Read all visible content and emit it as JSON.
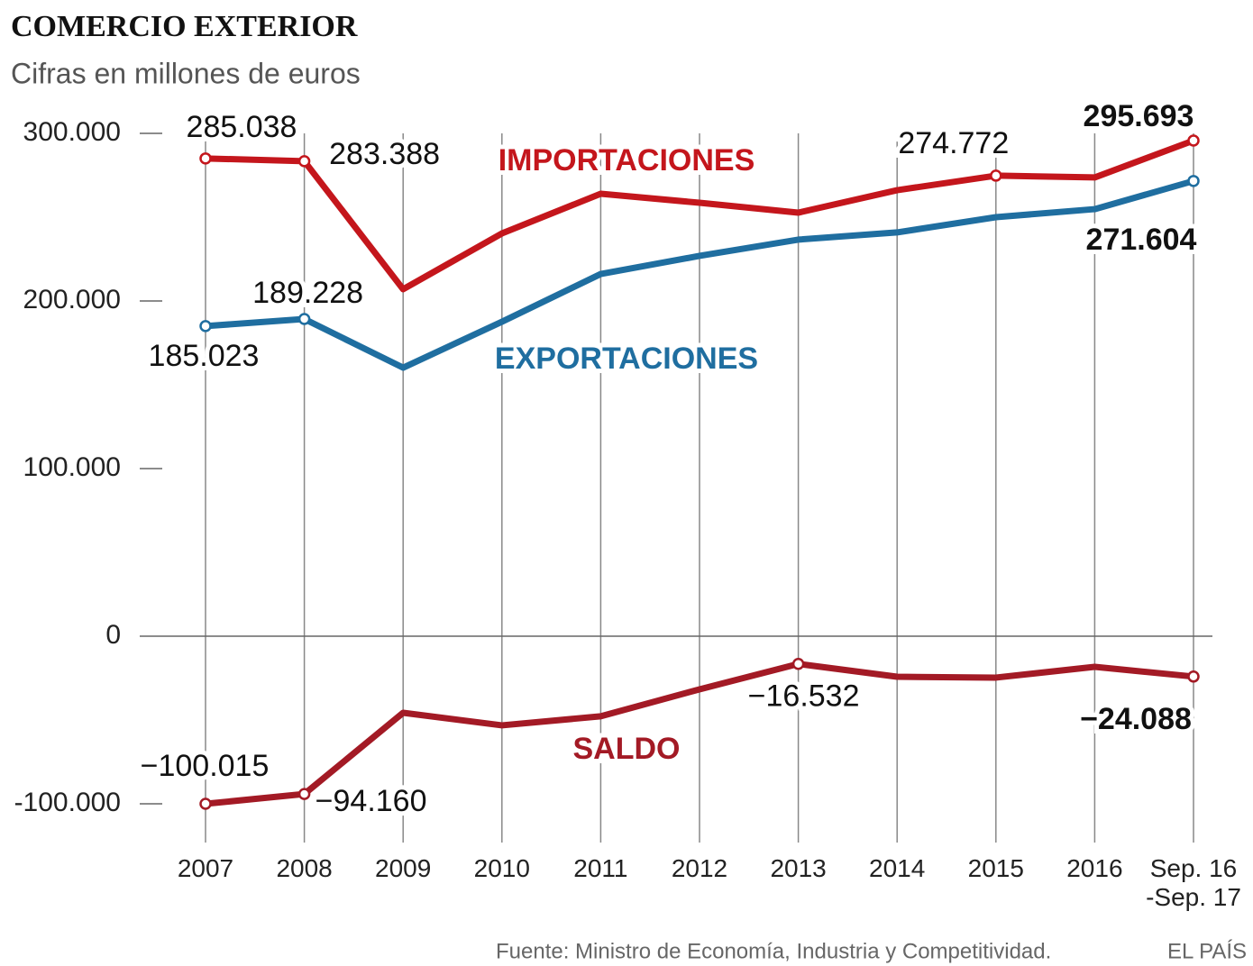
{
  "chart_data": {
    "type": "line",
    "title": "COMERCIO EXTERIOR",
    "subtitle": "Cifras en millones de euros",
    "source": "Fuente: Ministro de Economía, Industria y Competitividad.",
    "credit": "EL PAÍS",
    "categories": [
      "2007",
      "2008",
      "2009",
      "2010",
      "2011",
      "2012",
      "2013",
      "2014",
      "2015",
      "2016",
      "Sep. 16 -Sep. 17"
    ],
    "series": [
      {
        "name": "IMPORTACIONES",
        "color": "#c4161c",
        "values": [
          285038,
          283388,
          207000,
          240300,
          264000,
          258600,
          252700,
          266100,
          274772,
          273700,
          295693
        ],
        "value_labels": [
          "285.038",
          "283.388",
          null,
          null,
          null,
          null,
          null,
          null,
          "274.772",
          null,
          "295.693"
        ]
      },
      {
        "name": "EXPORTACIONES",
        "color": "#1f6ea0",
        "values": [
          185023,
          189228,
          160200,
          187600,
          216100,
          226900,
          236600,
          240900,
          250000,
          254800,
          271604
        ],
        "value_labels": [
          "185.023",
          "189.228",
          null,
          null,
          null,
          null,
          null,
          null,
          null,
          null,
          "271.604"
        ]
      },
      {
        "name": "SALDO",
        "color": "#a31a25",
        "values": [
          -100015,
          -94160,
          -45700,
          -53200,
          -47800,
          -31700,
          -16532,
          -24200,
          -24700,
          -18300,
          -24088
        ],
        "value_labels": [
          "−100.015",
          "−94.160",
          null,
          null,
          null,
          null,
          "−16.532",
          null,
          null,
          null,
          "−24.088"
        ]
      }
    ],
    "ylim": [
      -100000,
      300000
    ],
    "yticks": [
      {
        "value": -100000,
        "label": "-100.000"
      },
      0,
      {
        "value": 100000,
        "label": "100.000"
      },
      {
        "value": 200000,
        "label": "200.000"
      },
      {
        "value": 300000,
        "label": "300.000"
      }
    ],
    "grid": true
  }
}
